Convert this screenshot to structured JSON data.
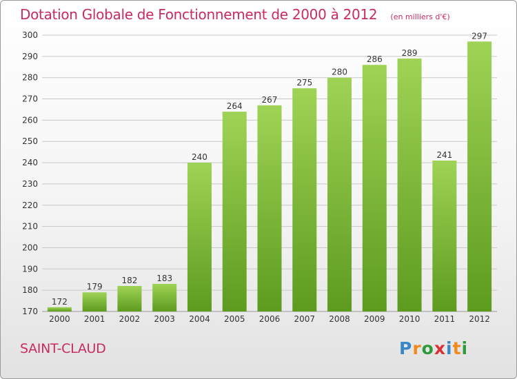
{
  "header": {
    "title": "Dotation Globale de Fonctionnement de 2000 à 2012",
    "unit": "(en milliers d'€)"
  },
  "footer": {
    "commune": "SAINT-CLAUD",
    "logo_text": "Proxiti",
    "logo_letters": [
      "P",
      "r",
      "o",
      "x",
      "i",
      "t",
      "i"
    ]
  },
  "colors": {
    "title": "#c72b62",
    "bar_top": "#9fd356",
    "bar_bottom": "#5d9b1f",
    "grid": "#c8c8c8",
    "axis_text": "#333333"
  },
  "chart_data": {
    "type": "bar",
    "title": "Dotation Globale de Fonctionnement de 2000 à 2012",
    "subtitle": "(en milliers d'€)",
    "categories": [
      "2000",
      "2001",
      "2002",
      "2003",
      "2004",
      "2005",
      "2006",
      "2007",
      "2008",
      "2009",
      "2010",
      "2011",
      "2012"
    ],
    "values": [
      172,
      179,
      182,
      183,
      240,
      264,
      267,
      275,
      280,
      286,
      289,
      241,
      297
    ],
    "ylim": [
      170,
      300
    ],
    "yticks": [
      170,
      180,
      190,
      200,
      210,
      220,
      230,
      240,
      250,
      260,
      270,
      280,
      290,
      300
    ],
    "grid": true,
    "xlabel": "",
    "ylabel": ""
  }
}
